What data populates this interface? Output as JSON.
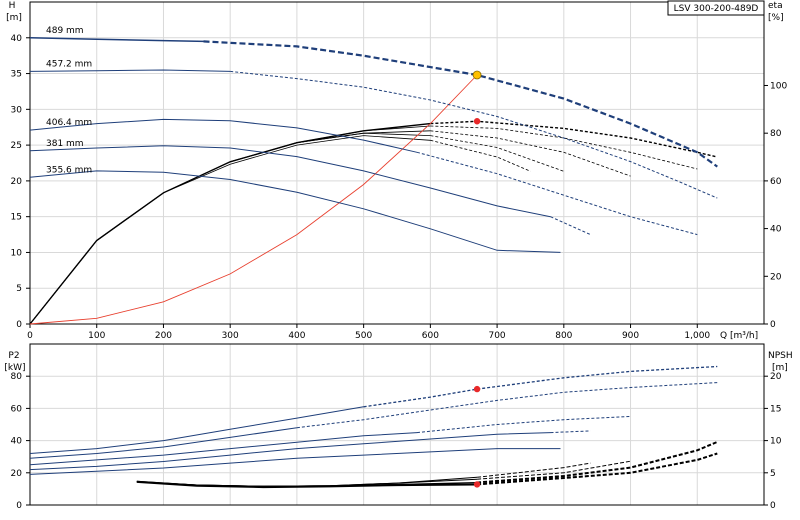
{
  "chart_data": [
    {
      "type": "line",
      "title": "LSV 300-200-489D",
      "xlabel": "Q [m³/h]",
      "x_unit_label": "Q [m³/h]",
      "ylabel_left": "H",
      "ylabel_left_unit": "[m]",
      "ylabel_right": "eta",
      "ylabel_right_unit": "[%]",
      "xlim": [
        0,
        1100
      ],
      "ylim_left": [
        0,
        45
      ],
      "ylim_right": [
        0,
        135
      ],
      "x_ticks": [
        "0",
        "100",
        "200",
        "300",
        "400",
        "500",
        "600",
        "700",
        "800",
        "900",
        "1,000"
      ],
      "x_tick_values": [
        0,
        100,
        200,
        300,
        400,
        500,
        600,
        700,
        800,
        900,
        1000
      ],
      "y_left_ticks": [
        "0",
        "5",
        "10",
        "15",
        "20",
        "25",
        "30",
        "35",
        "40"
      ],
      "y_left_tick_values": [
        0,
        5,
        10,
        15,
        20,
        25,
        30,
        35,
        40
      ],
      "y_right_ticks": [
        "0",
        "20",
        "40",
        "60",
        "80",
        "100"
      ],
      "y_right_tick_values": [
        0,
        20,
        40,
        60,
        80,
        100
      ],
      "grid": true,
      "head_series": [
        {
          "name": "489 mm",
          "color": "#1f3f7a",
          "solid": [
            [
              0,
              40.0
            ],
            [
              100,
              39.8
            ],
            [
              200,
              39.6
            ],
            [
              260,
              39.5
            ]
          ],
          "dashed": [
            [
              260,
              39.5
            ],
            [
              400,
              38.8
            ],
            [
              500,
              37.5
            ],
            [
              600,
              35.9
            ],
            [
              670,
              34.8
            ],
            [
              800,
              31.5
            ],
            [
              900,
              28.0
            ],
            [
              1000,
              24.0
            ],
            [
              1030,
              22.0
            ]
          ]
        },
        {
          "name": "457.2 mm",
          "color": "#1f3f7a",
          "solid": [
            [
              0,
              35.3
            ],
            [
              100,
              35.4
            ],
            [
              200,
              35.5
            ],
            [
              300,
              35.3
            ]
          ],
          "dashed": [
            [
              300,
              35.3
            ],
            [
              400,
              34.3
            ],
            [
              500,
              33.1
            ],
            [
              600,
              31.3
            ],
            [
              700,
              29.0
            ],
            [
              800,
              26.0
            ],
            [
              900,
              22.7
            ],
            [
              970,
              20.0
            ],
            [
              1030,
              17.6
            ]
          ]
        },
        {
          "name": "406.4 mm",
          "color": "#1f3f7a",
          "solid": [
            [
              0,
              27.1
            ],
            [
              100,
              28.0
            ],
            [
              200,
              28.6
            ],
            [
              300,
              28.4
            ],
            [
              400,
              27.4
            ],
            [
              500,
              25.7
            ],
            [
              580,
              24.0
            ]
          ],
          "dashed": [
            [
              580,
              24.0
            ],
            [
              700,
              21.0
            ],
            [
              800,
              18.0
            ],
            [
              900,
              15.0
            ],
            [
              1000,
              12.5
            ]
          ]
        },
        {
          "name": "381 mm",
          "color": "#1f3f7a",
          "solid": [
            [
              0,
              24.2
            ],
            [
              100,
              24.6
            ],
            [
              200,
              24.9
            ],
            [
              300,
              24.6
            ],
            [
              400,
              23.4
            ],
            [
              500,
              21.4
            ],
            [
              600,
              19.0
            ],
            [
              700,
              16.5
            ],
            [
              780,
              15.0
            ]
          ],
          "dashed": [
            [
              780,
              15.0
            ],
            [
              840,
              12.5
            ]
          ]
        },
        {
          "name": "355.6 mm",
          "color": "#1f3f7a",
          "solid": [
            [
              0,
              20.5
            ],
            [
              100,
              21.4
            ],
            [
              200,
              21.2
            ],
            [
              300,
              20.2
            ],
            [
              400,
              18.4
            ],
            [
              500,
              16.1
            ],
            [
              600,
              13.3
            ],
            [
              700,
              10.3
            ],
            [
              795,
              10.0
            ]
          ],
          "dashed": []
        }
      ],
      "eta_series": [
        {
          "color": "#000000",
          "points": [
            [
              0,
              0
            ],
            [
              100,
              35
            ],
            [
              200,
              55
            ],
            [
              300,
              68
            ],
            [
              400,
              76
            ],
            [
              500,
              81
            ],
            [
              600,
              84
            ],
            [
              670,
              85
            ],
            [
              800,
              82
            ],
            [
              900,
              78
            ],
            [
              1000,
              72
            ],
            [
              1030,
              70
            ]
          ]
        },
        {
          "color": "#000000",
          "points": [
            [
              0,
              0
            ],
            [
              100,
              35
            ],
            [
              200,
              55
            ],
            [
              300,
              68
            ],
            [
              400,
              76
            ],
            [
              500,
              81
            ],
            [
              600,
              83
            ],
            [
              700,
              82
            ],
            [
              800,
              78
            ],
            [
              900,
              72
            ],
            [
              1000,
              65
            ]
          ]
        },
        {
          "color": "#000000",
          "points": [
            [
              0,
              0
            ],
            [
              100,
              35
            ],
            [
              200,
              55
            ],
            [
              300,
              68
            ],
            [
              400,
              76
            ],
            [
              500,
              80
            ],
            [
              600,
              81
            ],
            [
              700,
              78
            ],
            [
              800,
              72
            ],
            [
              900,
              62
            ]
          ]
        },
        {
          "color": "#000000",
          "points": [
            [
              0,
              0
            ],
            [
              100,
              35
            ],
            [
              200,
              55
            ],
            [
              300,
              68
            ],
            [
              400,
              76
            ],
            [
              500,
              80
            ],
            [
              600,
              79
            ],
            [
              700,
              74
            ],
            [
              800,
              64
            ]
          ]
        },
        {
          "color": "#000000",
          "points": [
            [
              0,
              0
            ],
            [
              100,
              35
            ],
            [
              200,
              55
            ],
            [
              300,
              67
            ],
            [
              400,
              75
            ],
            [
              500,
              79
            ],
            [
              600,
              77
            ],
            [
              700,
              70
            ],
            [
              750,
              64
            ]
          ]
        }
      ],
      "system_curve": {
        "color": "#e8402f",
        "points": [
          [
            0,
            0
          ],
          [
            100,
            0.8
          ],
          [
            200,
            3.1
          ],
          [
            300,
            7.0
          ],
          [
            400,
            12.5
          ],
          [
            500,
            19.5
          ],
          [
            600,
            28.0
          ],
          [
            670,
            34.8
          ]
        ]
      },
      "duty_point_head": {
        "x": 670,
        "y": 34.8,
        "color": "#ffc000"
      },
      "duty_point_eta": {
        "x": 670,
        "y_right": 85,
        "color": "#e8292a"
      }
    },
    {
      "type": "line",
      "xlabel": "",
      "ylabel_left": "P2",
      "ylabel_left_unit": "[kW]",
      "ylabel_right": "NPSH",
      "ylabel_right_unit": "[m]",
      "xlim": [
        0,
        1100
      ],
      "ylim_left": [
        0,
        100
      ],
      "ylim_right": [
        0,
        25
      ],
      "y_left_ticks": [
        "0",
        "20",
        "40",
        "60",
        "80"
      ],
      "y_left_tick_values": [
        0,
        20,
        40,
        60,
        80
      ],
      "y_right_ticks": [
        "0",
        "5",
        "10",
        "15",
        "20"
      ],
      "y_right_tick_values": [
        0,
        5,
        10,
        15,
        20
      ],
      "grid": true,
      "power_series": [
        {
          "color": "#1f3f7a",
          "solid": [
            [
              0,
              32
            ],
            [
              100,
              35
            ],
            [
              200,
              40
            ],
            [
              300,
              47
            ],
            [
              400,
              54
            ],
            [
              500,
              61
            ]
          ],
          "dashed": [
            [
              500,
              61
            ],
            [
              600,
              67
            ],
            [
              670,
              72
            ],
            [
              800,
              79
            ],
            [
              900,
              83
            ],
            [
              1030,
              86
            ]
          ]
        },
        {
          "color": "#1f3f7a",
          "solid": [
            [
              0,
              29
            ],
            [
              100,
              32
            ],
            [
              200,
              36
            ],
            [
              300,
              42
            ],
            [
              400,
              48
            ]
          ],
          "dashed": [
            [
              400,
              48
            ],
            [
              500,
              53
            ],
            [
              600,
              59
            ],
            [
              700,
              65
            ],
            [
              800,
              70
            ],
            [
              900,
              73
            ],
            [
              1030,
              76
            ]
          ]
        },
        {
          "color": "#1f3f7a",
          "solid": [
            [
              0,
              25
            ],
            [
              100,
              28
            ],
            [
              200,
              31
            ],
            [
              300,
              35
            ],
            [
              400,
              39
            ],
            [
              500,
              43
            ],
            [
              580,
              45
            ]
          ],
          "dashed": [
            [
              580,
              45
            ],
            [
              700,
              50
            ],
            [
              800,
              53
            ],
            [
              900,
              55
            ]
          ]
        },
        {
          "color": "#1f3f7a",
          "solid": [
            [
              0,
              22
            ],
            [
              100,
              24
            ],
            [
              200,
              27
            ],
            [
              300,
              31
            ],
            [
              400,
              35
            ],
            [
              500,
              38
            ],
            [
              600,
              41
            ],
            [
              700,
              44
            ],
            [
              780,
              45
            ]
          ],
          "dashed": [
            [
              780,
              45
            ],
            [
              840,
              46
            ]
          ]
        },
        {
          "color": "#1f3f7a",
          "solid": [
            [
              0,
              19
            ],
            [
              100,
              21
            ],
            [
              200,
              23
            ],
            [
              300,
              26
            ],
            [
              400,
              29
            ],
            [
              500,
              31
            ],
            [
              600,
              33
            ],
            [
              700,
              35
            ],
            [
              795,
              35
            ]
          ],
          "dashed": []
        }
      ],
      "npsh_series": [
        {
          "color": "#000000",
          "points": [
            [
              160,
              3.6
            ],
            [
              250,
              3.0
            ],
            [
              350,
              2.8
            ],
            [
              450,
              2.9
            ],
            [
              550,
              3.1
            ],
            [
              670,
              3.2
            ],
            [
              800,
              4.2
            ],
            [
              900,
              5.0
            ],
            [
              1000,
              7.0
            ],
            [
              1030,
              8.0
            ]
          ]
        },
        {
          "color": "#000000",
          "points": [
            [
              160,
              3.6
            ],
            [
              250,
              3.1
            ],
            [
              350,
              2.9
            ],
            [
              450,
              3.0
            ],
            [
              550,
              3.2
            ],
            [
              670,
              3.5
            ],
            [
              800,
              4.5
            ],
            [
              900,
              5.8
            ],
            [
              1000,
              8.5
            ],
            [
              1030,
              9.8
            ]
          ]
        },
        {
          "color": "#000000",
          "points": [
            [
              160,
              3.7
            ],
            [
              250,
              3.1
            ],
            [
              350,
              2.9
            ],
            [
              450,
              3.0
            ],
            [
              550,
              3.4
            ],
            [
              670,
              4.0
            ],
            [
              800,
              5.0
            ],
            [
              900,
              6.8
            ]
          ]
        },
        {
          "color": "#000000",
          "points": [
            [
              160,
              3.6
            ],
            [
              250,
              3.1
            ],
            [
              350,
              2.9
            ],
            [
              450,
              3.0
            ],
            [
              550,
              3.4
            ],
            [
              670,
              4.3
            ],
            [
              800,
              5.8
            ],
            [
              840,
              6.5
            ]
          ]
        }
      ],
      "duty_point_power": {
        "x": 670,
        "y": 72,
        "color": "#e8292a"
      },
      "duty_point_npsh": {
        "x": 670,
        "y_right": 3.2,
        "color": "#e8292a"
      }
    }
  ]
}
